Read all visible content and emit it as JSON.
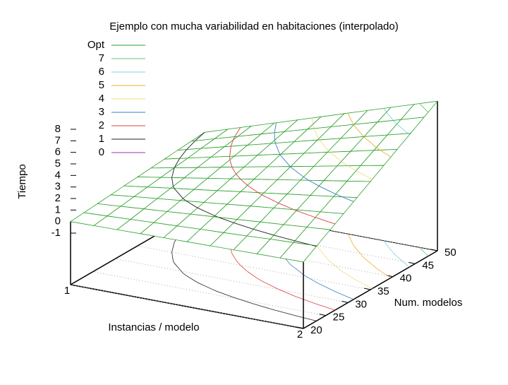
{
  "chart_data": {
    "type": "surface",
    "title": "Ejemplo con mucha variabilidad en habitaciones (interpolado)",
    "xlabel": "Instancias / modelo",
    "ylabel": "Num. modelos",
    "zlabel": "Tiempo",
    "surface_name": "Opt",
    "surface_color": "#2ca02c",
    "x": [
      1,
      1.1,
      1.2,
      1.3,
      1.4,
      1.5,
      1.6,
      1.7,
      1.8,
      1.9,
      2
    ],
    "y": [
      20,
      23,
      26,
      29,
      32,
      35,
      38,
      41,
      44,
      47,
      50
    ],
    "z": [
      [
        0,
        0.1,
        0.2,
        0.3,
        0.4,
        0.5,
        0.6,
        0.7,
        0.8,
        0.9,
        1
      ],
      [
        0.03,
        0.19,
        0.35,
        0.52,
        0.68,
        0.84,
        1.0,
        1.16,
        1.33,
        1.49,
        1.65
      ],
      [
        0.06,
        0.28,
        0.51,
        0.73,
        0.96,
        1.18,
        1.4,
        1.63,
        1.85,
        2.08,
        2.3
      ],
      [
        0.09,
        0.38,
        0.66,
        0.95,
        1.23,
        1.52,
        1.81,
        2.09,
        2.38,
        2.66,
        2.95
      ],
      [
        0.12,
        0.47,
        0.82,
        1.16,
        1.51,
        1.86,
        2.21,
        2.56,
        2.9,
        3.25,
        3.6
      ],
      [
        0.15,
        0.56,
        0.97,
        1.38,
        1.79,
        2.2,
        2.61,
        3.02,
        3.43,
        3.84,
        4.25
      ],
      [
        0.18,
        0.65,
        1.12,
        1.6,
        2.07,
        2.54,
        3.01,
        3.48,
        3.96,
        4.43,
        4.9
      ],
      [
        0.21,
        0.74,
        1.28,
        1.81,
        2.35,
        2.88,
        3.41,
        3.95,
        4.48,
        5.02,
        5.55
      ],
      [
        0.24,
        0.84,
        1.43,
        2.03,
        2.62,
        3.22,
        3.82,
        4.41,
        5.01,
        5.6,
        6.2
      ],
      [
        0.27,
        0.93,
        1.59,
        2.24,
        2.9,
        3.56,
        4.22,
        4.88,
        5.53,
        6.19,
        6.85
      ],
      [
        0.3,
        1.02,
        1.74,
        2.46,
        3.18,
        3.9,
        4.62,
        5.34,
        6.06,
        6.78,
        7.5
      ]
    ],
    "contours": [
      {
        "level": 7,
        "color": "#66c27a"
      },
      {
        "level": 6,
        "color": "#87ceeb"
      },
      {
        "level": 5,
        "color": "#f0b030"
      },
      {
        "level": 4,
        "color": "#f5dc80"
      },
      {
        "level": 3,
        "color": "#3c7fc0"
      },
      {
        "level": 2,
        "color": "#e03c3c"
      },
      {
        "level": 1,
        "color": "#202020"
      },
      {
        "level": 0,
        "color": "#a030c0"
      }
    ],
    "xlim": [
      1,
      2
    ],
    "ylim": [
      20,
      50
    ],
    "zlim": [
      -1,
      8
    ],
    "xticks": [
      1,
      2
    ],
    "yticks": [
      20,
      25,
      30,
      35,
      40,
      45,
      50
    ],
    "zticks": [
      -1,
      0,
      1,
      2,
      3,
      4,
      5,
      6,
      7,
      8
    ]
  }
}
